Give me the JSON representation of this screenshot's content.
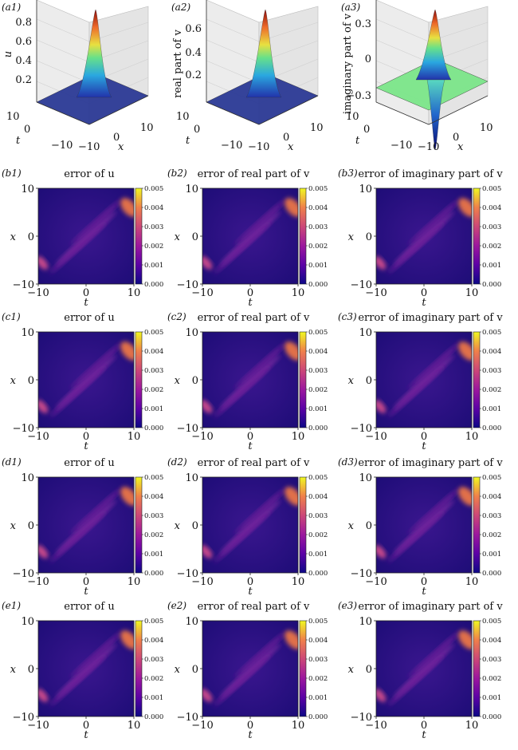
{
  "colorbar": {
    "ticks": [
      "0.000",
      "0.001",
      "0.002",
      "0.003",
      "0.004",
      "0.005"
    ]
  },
  "surfaces": [
    {
      "tag": "(a1)",
      "zlabel": "u",
      "zticks": [
        "0.8",
        "0.6",
        "0.4",
        "0.2"
      ],
      "xlabel": "x",
      "ylabel": "t",
      "xticks": [
        "0",
        "10"
      ],
      "yticks": [
        "10",
        "0",
        "−10"
      ],
      "corner": "−10"
    },
    {
      "tag": "(a2)",
      "zlabel": "real part of v",
      "zticks": [
        "0.6",
        "0.4",
        "0.2"
      ],
      "xlabel": "x",
      "ylabel": "t",
      "xticks": [
        "0",
        "10"
      ],
      "yticks": [
        "10",
        "0",
        "−10"
      ],
      "corner": "−10"
    },
    {
      "tag": "(a3)",
      "zlabel": "imaginary part of v",
      "zticks": [
        "0.3",
        "0",
        "−0.3"
      ],
      "xlabel": "x",
      "ylabel": "t",
      "xticks": [
        "0",
        "10"
      ],
      "yticks": [
        "10",
        "0",
        "−10"
      ],
      "corner": "−10"
    }
  ],
  "heatmaps": [
    [
      {
        "tag": "(b1)",
        "title": "error of u",
        "xlabel": "t",
        "ylabel": "x",
        "xticks": [
          "−10",
          "0",
          "10"
        ],
        "yticks": [
          "10",
          "0",
          "−10"
        ]
      },
      {
        "tag": "(b2)",
        "title": "error of real part of v",
        "xlabel": "t",
        "ylabel": "x",
        "xticks": [
          "−10",
          "0",
          "10"
        ],
        "yticks": [
          "10",
          "0",
          "−10"
        ]
      },
      {
        "tag": "(b3)",
        "title": "error of imaginary part of v",
        "xlabel": "t",
        "ylabel": "x",
        "xticks": [
          "−10",
          "0",
          "10"
        ],
        "yticks": [
          "10",
          "0",
          "−10"
        ]
      }
    ],
    [
      {
        "tag": "(c1)",
        "title": "error of u",
        "xlabel": "t",
        "ylabel": "x",
        "xticks": [
          "−10",
          "0",
          "10"
        ],
        "yticks": [
          "10",
          "0",
          "−10"
        ]
      },
      {
        "tag": "(c2)",
        "title": "error of real part of v",
        "xlabel": "t",
        "ylabel": "x",
        "xticks": [
          "−10",
          "0",
          "10"
        ],
        "yticks": [
          "10",
          "0",
          "−10"
        ]
      },
      {
        "tag": "(c3)",
        "title": "error of imaginary part of v",
        "xlabel": "t",
        "ylabel": "x",
        "xticks": [
          "−10",
          "0",
          "10"
        ],
        "yticks": [
          "10",
          "0",
          "−10"
        ]
      }
    ],
    [
      {
        "tag": "(d1)",
        "title": "error of u",
        "xlabel": "t",
        "ylabel": "x",
        "xticks": [
          "−10",
          "0",
          "10"
        ],
        "yticks": [
          "10",
          "0",
          "−10"
        ]
      },
      {
        "tag": "(d2)",
        "title": "error of real part of v",
        "xlabel": "t",
        "ylabel": "x",
        "xticks": [
          "−10",
          "0",
          "10"
        ],
        "yticks": [
          "10",
          "0",
          "−10"
        ]
      },
      {
        "tag": "(d3)",
        "title": "error of imaginary part of v",
        "xlabel": "t",
        "ylabel": "x",
        "xticks": [
          "−10",
          "0",
          "10"
        ],
        "yticks": [
          "10",
          "0",
          "−10"
        ]
      }
    ],
    [
      {
        "tag": "(e1)",
        "title": "error of u",
        "xlabel": "t",
        "ylabel": "x",
        "xticks": [
          "−10",
          "0",
          "10"
        ],
        "yticks": [
          "10",
          "0",
          "−10"
        ]
      },
      {
        "tag": "(e2)",
        "title": "error of real part of v",
        "xlabel": "t",
        "ylabel": "x",
        "xticks": [
          "−10",
          "0",
          "10"
        ],
        "yticks": [
          "10",
          "0",
          "−10"
        ]
      },
      {
        "tag": "(e3)",
        "title": "error of imaginary part of v",
        "xlabel": "t",
        "ylabel": "x",
        "xticks": [
          "−10",
          "0",
          "10"
        ],
        "yticks": [
          "10",
          "0",
          "−10"
        ]
      }
    ]
  ],
  "chart_data": [
    {
      "type": "surface",
      "panel": "(a1)",
      "zlabel": "u",
      "xlabel": "x",
      "ylabel": "t",
      "xlim": [
        -10,
        10
      ],
      "ylim": [
        -10,
        10
      ],
      "zlim": [
        0,
        0.85
      ],
      "peak": 0.85,
      "colormap": "jet"
    },
    {
      "type": "surface",
      "panel": "(a2)",
      "zlabel": "real part of v",
      "xlabel": "x",
      "ylabel": "t",
      "xlim": [
        -10,
        10
      ],
      "ylim": [
        -10,
        10
      ],
      "zlim": [
        0,
        0.65
      ],
      "peak": 0.65,
      "colormap": "jet"
    },
    {
      "type": "surface",
      "panel": "(a3)",
      "zlabel": "imaginary part of v",
      "xlabel": "x",
      "ylabel": "t",
      "xlim": [
        -10,
        10
      ],
      "ylim": [
        -10,
        10
      ],
      "zlim": [
        -0.35,
        0.35
      ],
      "peak": 0.35,
      "trough": -0.35,
      "colormap": "jet"
    },
    {
      "type": "heatmap",
      "panels": [
        "(b1)",
        "(b2)",
        "(b3)",
        "(c1)",
        "(c2)",
        "(c3)",
        "(d1)",
        "(d2)",
        "(d3)",
        "(e1)",
        "(e2)",
        "(e3)"
      ],
      "xlabel": "t",
      "ylabel": "x",
      "xlim": [
        -10,
        10
      ],
      "ylim": [
        -10,
        10
      ],
      "colorbar_range": [
        0,
        0.005
      ],
      "colormap": "plasma"
    }
  ]
}
